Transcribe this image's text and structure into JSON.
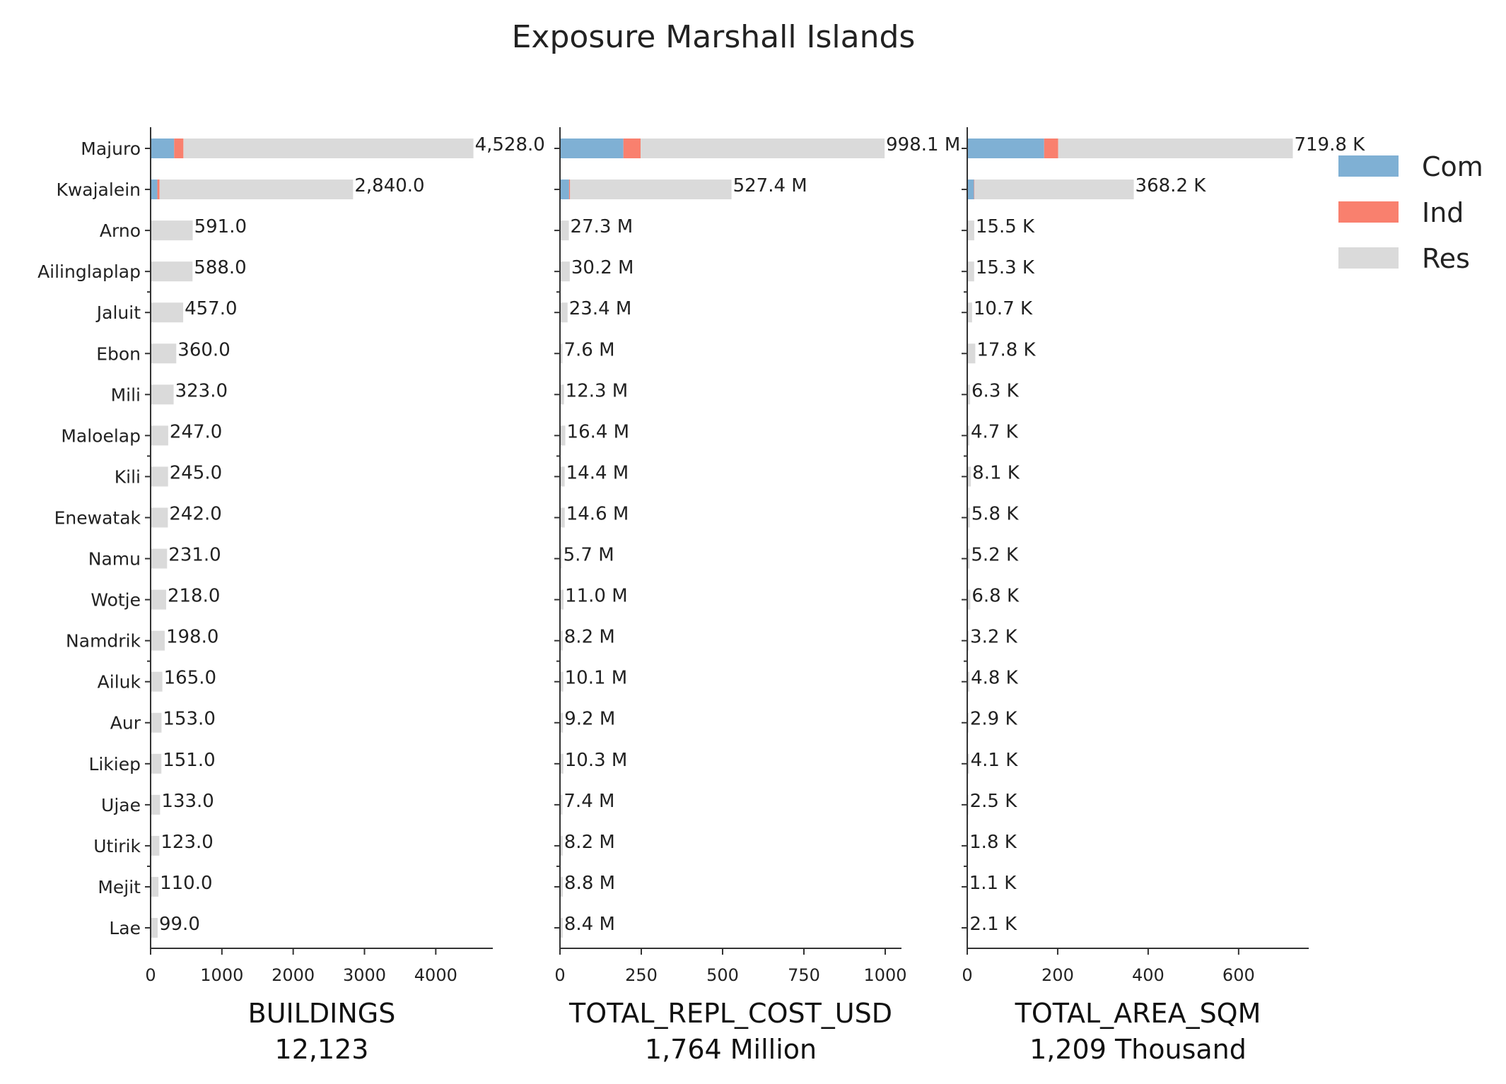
{
  "chart_data": {
    "type": "bar",
    "title": "Exposure Marshall Islands",
    "categories": [
      "Majuro",
      "Kwajalein",
      "Arno",
      "Ailinglaplap",
      "Jaluit",
      "Ebon",
      "Mili",
      "Maloelap",
      "Kili",
      "Enewatak",
      "Namu",
      "Wotje",
      "Namdrik",
      "Ailuk",
      "Aur",
      "Likiep",
      "Ujae",
      "Utirik",
      "Mejit",
      "Lae"
    ],
    "colors": {
      "Com": "#7fb0d4",
      "Ind": "#f9806e",
      "Res": "#dadada"
    },
    "legend": {
      "position": "top-right",
      "items": [
        "Com",
        "Ind",
        "Res"
      ]
    },
    "panels": [
      {
        "xlabel": "BUILDINGS",
        "total_label": "12,123",
        "xlim": [
          0,
          4800
        ],
        "xticks": [
          0,
          1000,
          2000,
          3000,
          4000
        ],
        "series": [
          {
            "name": "Com",
            "values": [
              330,
              95,
              0,
              0,
              0,
              0,
              0,
              0,
              0,
              0,
              0,
              0,
              0,
              0,
              0,
              0,
              0,
              0,
              0,
              0
            ]
          },
          {
            "name": "Ind",
            "values": [
              130,
              30,
              0,
              0,
              0,
              0,
              0,
              0,
              0,
              0,
              0,
              0,
              0,
              0,
              0,
              0,
              0,
              0,
              0,
              0
            ]
          },
          {
            "name": "Res",
            "values": [
              4068,
              2715,
              591,
              588,
              457,
              360,
              323,
              247,
              245,
              242,
              231,
              218,
              198,
              165,
              153,
              151,
              133,
              123,
              110,
              99
            ]
          }
        ],
        "data_labels": [
          "4,528.0",
          "2,840.0",
          "591.0",
          "588.0",
          "457.0",
          "360.0",
          "323.0",
          "247.0",
          "245.0",
          "242.0",
          "231.0",
          "218.0",
          "198.0",
          "165.0",
          "153.0",
          "151.0",
          "133.0",
          "123.0",
          "110.0",
          "99.0"
        ]
      },
      {
        "xlabel": "TOTAL_REPL_COST_USD",
        "total_label": "1,764 Million",
        "xlim": [
          0,
          1050
        ],
        "xticks": [
          0,
          250,
          500,
          750,
          1000
        ],
        "series": [
          {
            "name": "Com",
            "values": [
              195,
              28,
              0,
              0,
              0,
              0,
              0,
              0,
              0,
              0,
              0,
              0,
              0,
              0,
              0,
              0,
              0,
              0,
              0,
              0
            ]
          },
          {
            "name": "Ind",
            "values": [
              53,
              3,
              0,
              0,
              0,
              0,
              0,
              0,
              0,
              0,
              0,
              0,
              0,
              0,
              0,
              0,
              0,
              0,
              0,
              0
            ]
          },
          {
            "name": "Res",
            "values": [
              750.1,
              496.4,
              27.3,
              30.2,
              23.4,
              7.6,
              12.3,
              16.4,
              14.4,
              14.6,
              5.7,
              11.0,
              8.2,
              10.1,
              9.2,
              10.3,
              7.4,
              8.2,
              8.8,
              8.4
            ]
          }
        ],
        "data_labels": [
          "998.1 M",
          "527.4 M",
          "27.3 M",
          "30.2 M",
          "23.4 M",
          "7.6 M",
          "12.3 M",
          "16.4 M",
          "14.4 M",
          "14.6 M",
          "5.7 M",
          "11.0 M",
          "8.2 M",
          "10.1 M",
          "9.2 M",
          "10.3 M",
          "7.4 M",
          "8.2 M",
          "8.8 M",
          "8.4 M"
        ]
      },
      {
        "xlabel": "TOTAL_AREA_SQM",
        "total_label": "1,209 Thousand",
        "xlim": [
          0,
          755
        ],
        "xticks": [
          0,
          200,
          400,
          600
        ],
        "series": [
          {
            "name": "Com",
            "values": [
              170,
              15,
              0,
              0,
              0,
              0,
              0,
              0,
              0,
              0,
              0,
              0,
              0,
              0,
              0,
              0,
              0,
              0,
              0,
              0
            ]
          },
          {
            "name": "Ind",
            "values": [
              31,
              1,
              0,
              0,
              0,
              0,
              0,
              0,
              0,
              0,
              0,
              0,
              0,
              0,
              0,
              0,
              0,
              0,
              0,
              0
            ]
          },
          {
            "name": "Res",
            "values": [
              518.8,
              352.2,
              15.5,
              15.3,
              10.7,
              17.8,
              6.3,
              4.7,
              8.1,
              5.8,
              5.2,
              6.8,
              3.2,
              4.8,
              2.9,
              4.1,
              2.5,
              1.8,
              1.1,
              2.1
            ]
          }
        ],
        "data_labels": [
          "719.8 K",
          "368.2 K",
          "15.5 K",
          "15.3 K",
          "10.7 K",
          "17.8 K",
          "6.3 K",
          "4.7 K",
          "8.1 K",
          "5.8 K",
          "5.2 K",
          "6.8 K",
          "3.2 K",
          "4.8 K",
          "2.9 K",
          "4.1 K",
          "2.5 K",
          "1.8 K",
          "1.1 K",
          "2.1 K"
        ]
      }
    ]
  }
}
